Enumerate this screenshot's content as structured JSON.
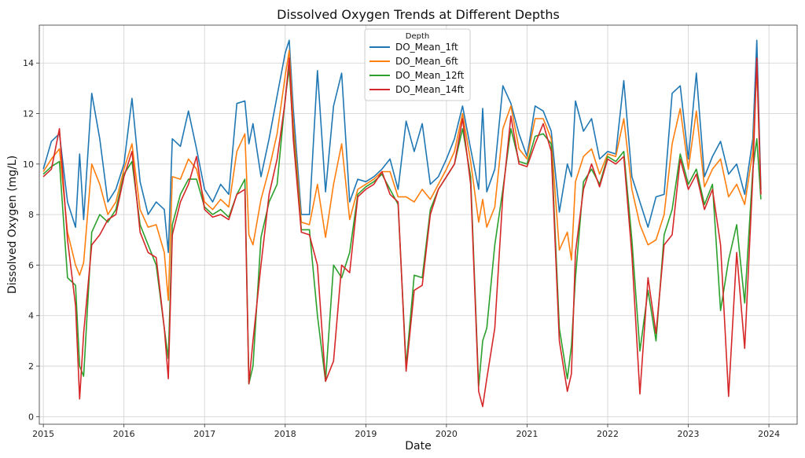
{
  "chart_data": {
    "type": "line",
    "title": "Dissolved Oxygen Trends at Different Depths",
    "xlabel": "Date",
    "ylabel": "Dissolved Oxygen (mg/L)",
    "xlim": [
      2014.95,
      2024.35
    ],
    "ylim": [
      -0.3,
      15.5
    ],
    "x_ticks": [
      2015,
      2016,
      2017,
      2018,
      2019,
      2020,
      2021,
      2022,
      2023,
      2024
    ],
    "x_tick_labels": [
      "2015",
      "2016",
      "2017",
      "2018",
      "2019",
      "2020",
      "2021",
      "2022",
      "2023",
      "2024"
    ],
    "y_ticks": [
      0,
      2,
      4,
      6,
      8,
      10,
      12,
      14
    ],
    "y_tick_labels": [
      "0",
      "2",
      "4",
      "6",
      "8",
      "10",
      "12",
      "14"
    ],
    "grid": true,
    "legend": {
      "title": "Depth",
      "placement": "top-center"
    },
    "x": [
      2015.0,
      2015.1,
      2015.2,
      2015.3,
      2015.4,
      2015.45,
      2015.5,
      2015.6,
      2015.7,
      2015.8,
      2015.9,
      2016.0,
      2016.1,
      2016.2,
      2016.3,
      2016.4,
      2016.5,
      2016.55,
      2016.6,
      2016.7,
      2016.8,
      2016.9,
      2017.0,
      2017.1,
      2017.2,
      2017.3,
      2017.4,
      2017.5,
      2017.55,
      2017.6,
      2017.7,
      2017.8,
      2017.9,
      2018.0,
      2018.05,
      2018.1,
      2018.2,
      2018.3,
      2018.4,
      2018.5,
      2018.6,
      2018.7,
      2018.8,
      2018.9,
      2019.0,
      2019.1,
      2019.2,
      2019.3,
      2019.4,
      2019.5,
      2019.6,
      2019.7,
      2019.8,
      2019.9,
      2020.0,
      2020.1,
      2020.2,
      2020.3,
      2020.4,
      2020.45,
      2020.5,
      2020.6,
      2020.7,
      2020.8,
      2020.9,
      2021.0,
      2021.1,
      2021.2,
      2021.3,
      2021.4,
      2021.5,
      2021.55,
      2021.6,
      2021.7,
      2021.8,
      2021.9,
      2022.0,
      2022.1,
      2022.2,
      2022.3,
      2022.4,
      2022.5,
      2022.6,
      2022.7,
      2022.8,
      2022.9,
      2023.0,
      2023.1,
      2023.2,
      2023.3,
      2023.4,
      2023.5,
      2023.6,
      2023.7,
      2023.8,
      2023.85,
      2023.9
    ],
    "series": [
      {
        "name": "DO_Mean_1ft",
        "color": "#1f77b4",
        "values": [
          9.8,
          10.9,
          11.2,
          8.5,
          7.5,
          10.4,
          7.8,
          12.8,
          11.0,
          8.5,
          9.0,
          10.0,
          12.6,
          9.3,
          8.0,
          8.5,
          8.2,
          6.5,
          11.0,
          10.7,
          12.1,
          10.6,
          9.0,
          8.5,
          9.2,
          8.8,
          12.4,
          12.5,
          10.8,
          11.6,
          9.5,
          11.0,
          12.7,
          14.4,
          14.9,
          12.2,
          8.0,
          8.0,
          13.7,
          8.9,
          12.3,
          13.6,
          8.5,
          9.4,
          9.3,
          9.5,
          9.8,
          10.2,
          9.0,
          11.7,
          10.5,
          11.6,
          9.2,
          9.5,
          10.2,
          11.0,
          12.3,
          10.6,
          9.0,
          12.2,
          8.9,
          9.8,
          13.1,
          12.4,
          11.2,
          10.3,
          12.3,
          12.1,
          11.3,
          8.1,
          10.0,
          9.5,
          12.5,
          11.3,
          11.8,
          10.2,
          10.5,
          10.4,
          13.3,
          9.5,
          8.5,
          7.5,
          8.7,
          8.8,
          12.8,
          13.1,
          10.2,
          13.6,
          9.5,
          10.3,
          10.9,
          9.6,
          10.0,
          8.8,
          11.0,
          14.9,
          9.0
        ]
      },
      {
        "name": "DO_Mean_6ft",
        "color": "#ff7f0e",
        "values": [
          9.7,
          10.2,
          10.6,
          7.3,
          6.0,
          5.6,
          6.1,
          10.0,
          9.2,
          8.0,
          8.5,
          9.8,
          10.8,
          8.2,
          7.5,
          7.6,
          6.5,
          4.6,
          9.5,
          9.4,
          10.2,
          9.8,
          8.5,
          8.2,
          8.6,
          8.3,
          10.5,
          11.2,
          7.2,
          6.8,
          8.6,
          9.8,
          11.2,
          13.5,
          14.5,
          11.6,
          7.7,
          7.6,
          9.2,
          7.1,
          9.2,
          10.8,
          7.8,
          9.0,
          9.2,
          9.4,
          9.7,
          9.7,
          8.7,
          8.7,
          8.5,
          9.0,
          8.6,
          9.2,
          9.8,
          10.5,
          12.0,
          10.1,
          7.7,
          8.6,
          7.5,
          8.3,
          11.4,
          12.3,
          10.6,
          10.2,
          11.8,
          11.8,
          11.0,
          6.6,
          7.3,
          6.2,
          9.3,
          10.3,
          10.6,
          9.6,
          10.4,
          10.3,
          11.8,
          9.0,
          7.6,
          6.8,
          7.0,
          8.0,
          10.8,
          12.2,
          9.8,
          12.1,
          9.1,
          9.8,
          10.2,
          8.7,
          9.2,
          8.4,
          10.5,
          13.8,
          8.8
        ]
      },
      {
        "name": "DO_Mean_12ft",
        "color": "#2ca02c",
        "values": [
          9.6,
          9.9,
          10.1,
          5.5,
          5.2,
          2.0,
          1.6,
          7.3,
          8.0,
          7.7,
          8.2,
          9.6,
          10.1,
          7.6,
          6.8,
          6.0,
          3.5,
          2.3,
          7.6,
          8.8,
          9.4,
          9.4,
          8.3,
          8.0,
          8.2,
          7.9,
          8.8,
          9.4,
          1.3,
          2.0,
          7.1,
          8.5,
          9.2,
          12.6,
          13.8,
          11.2,
          7.4,
          7.4,
          4.0,
          1.4,
          6.0,
          5.5,
          6.5,
          8.8,
          9.1,
          9.3,
          9.6,
          9.0,
          8.4,
          2.0,
          5.6,
          5.5,
          8.2,
          9.0,
          9.5,
          10.0,
          11.4,
          9.5,
          1.2,
          3.0,
          3.5,
          6.8,
          9.0,
          11.4,
          10.1,
          10.0,
          11.1,
          11.2,
          10.8,
          3.5,
          1.5,
          2.8,
          5.5,
          9.3,
          9.8,
          9.2,
          10.3,
          10.1,
          10.5,
          7.0,
          2.6,
          5.0,
          3.0,
          7.2,
          8.2,
          10.4,
          9.2,
          9.8,
          8.4,
          9.2,
          4.2,
          6.2,
          7.6,
          4.5,
          9.8,
          11.0,
          8.6
        ]
      },
      {
        "name": "DO_Mean_14ft",
        "color": "#d62728",
        "values": [
          9.5,
          9.8,
          11.4,
          7.0,
          4.4,
          0.7,
          3.3,
          6.8,
          7.2,
          7.8,
          8.0,
          9.5,
          10.5,
          7.3,
          6.5,
          6.3,
          3.5,
          1.5,
          7.2,
          8.5,
          9.2,
          10.3,
          8.2,
          7.9,
          8.0,
          7.8,
          8.8,
          9.0,
          1.3,
          3.0,
          6.0,
          8.8,
          10.2,
          12.5,
          14.2,
          11.0,
          7.3,
          7.2,
          6.0,
          1.4,
          2.2,
          6.0,
          5.7,
          8.7,
          9.0,
          9.2,
          9.7,
          8.8,
          8.5,
          1.8,
          5.0,
          5.2,
          8.0,
          9.0,
          9.5,
          10.0,
          11.8,
          9.2,
          1.0,
          0.4,
          1.5,
          3.5,
          8.8,
          11.9,
          10.0,
          9.9,
          10.8,
          11.6,
          10.5,
          3.0,
          1.0,
          1.7,
          6.5,
          9.0,
          10.0,
          9.1,
          10.2,
          10.0,
          10.3,
          6.4,
          0.9,
          5.5,
          3.3,
          6.8,
          7.2,
          10.2,
          9.0,
          9.6,
          8.2,
          9.0,
          6.8,
          0.8,
          6.5,
          2.7,
          9.5,
          14.2,
          8.8
        ]
      }
    ]
  }
}
